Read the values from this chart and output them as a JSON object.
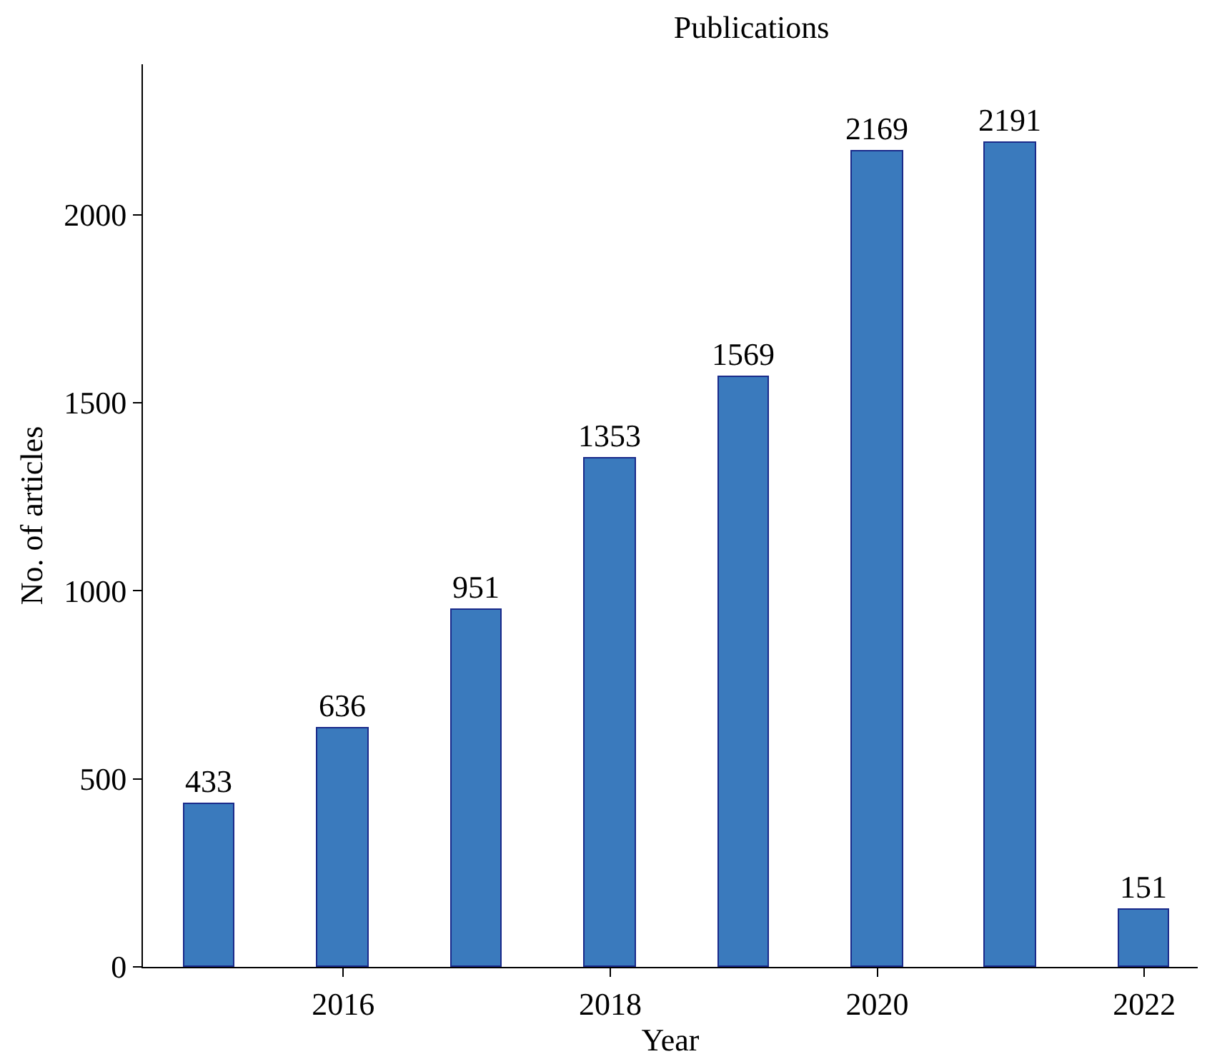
{
  "chart_data": {
    "type": "bar",
    "title": "Publications",
    "xlabel": "Year",
    "ylabel": "No. of articles",
    "x": [
      2015,
      2016,
      2017,
      2018,
      2019,
      2020,
      2021,
      2022
    ],
    "values": [
      433,
      636,
      951,
      1353,
      1569,
      2169,
      2191,
      151
    ],
    "color": "#3a7abd",
    "xlim": [
      2014.5,
      2022.4
    ],
    "xticks": [
      2016,
      2018,
      2020,
      2022
    ],
    "ylim": [
      0,
      2400
    ],
    "yticks": [
      0,
      500,
      1000,
      1500,
      2000
    ],
    "data_labels": true
  }
}
